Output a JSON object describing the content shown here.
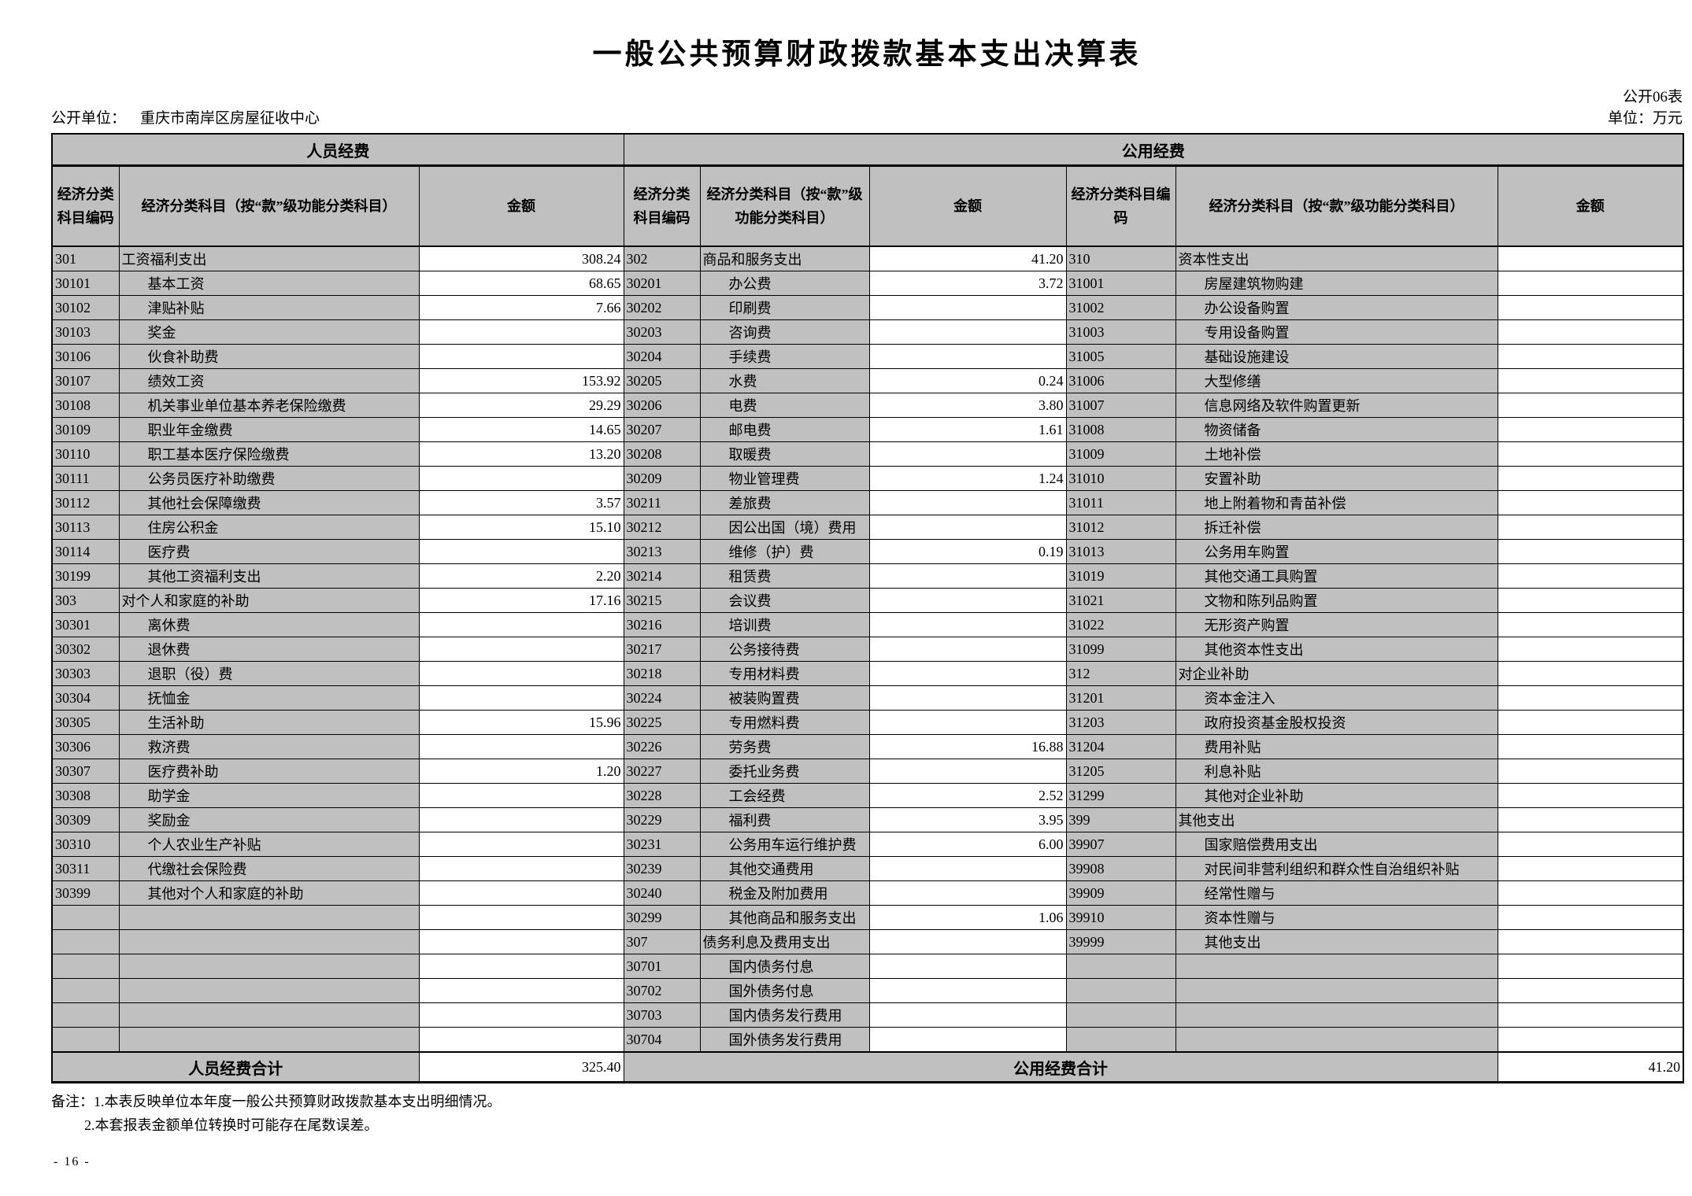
{
  "title": "一般公共预算财政拨款基本支出决算表",
  "meta": {
    "table_code": "公开06表",
    "unit_label": "公开单位：",
    "unit_name": "重庆市南岸区房屋征收中心",
    "unit_of_measure": "单位：万元"
  },
  "table": {
    "group_headers": [
      "人员经费",
      "公用经费"
    ],
    "column_headers": [
      "经济分类科目编码",
      "经济分类科目（按“款”级功能分类科目）",
      "金额",
      "经济分类科目编码",
      "经济分类科目（按“款”级功能分类科目）",
      "金额",
      "经济分类科目编码",
      "经济分类科目（按“款”级功能分类科目）",
      "金额"
    ],
    "sections": {
      "personnel": [
        {
          "code": "301",
          "name": "工资福利支出",
          "level": 0,
          "amount": "308.24"
        },
        {
          "code": "30101",
          "name": "基本工资",
          "level": 1,
          "amount": "68.65"
        },
        {
          "code": "30102",
          "name": "津贴补贴",
          "level": 1,
          "amount": "7.66"
        },
        {
          "code": "30103",
          "name": "奖金",
          "level": 1,
          "amount": ""
        },
        {
          "code": "30106",
          "name": "伙食补助费",
          "level": 1,
          "amount": ""
        },
        {
          "code": "30107",
          "name": "绩效工资",
          "level": 1,
          "amount": "153.92"
        },
        {
          "code": "30108",
          "name": "机关事业单位基本养老保险缴费",
          "level": 1,
          "amount": "29.29"
        },
        {
          "code": "30109",
          "name": "职业年金缴费",
          "level": 1,
          "amount": "14.65"
        },
        {
          "code": "30110",
          "name": "职工基本医疗保险缴费",
          "level": 1,
          "amount": "13.20"
        },
        {
          "code": "30111",
          "name": "公务员医疗补助缴费",
          "level": 1,
          "amount": ""
        },
        {
          "code": "30112",
          "name": "其他社会保障缴费",
          "level": 1,
          "amount": "3.57"
        },
        {
          "code": "30113",
          "name": "住房公积金",
          "level": 1,
          "amount": "15.10"
        },
        {
          "code": "30114",
          "name": "医疗费",
          "level": 1,
          "amount": ""
        },
        {
          "code": "30199",
          "name": "其他工资福利支出",
          "level": 1,
          "amount": "2.20"
        },
        {
          "code": "303",
          "name": "对个人和家庭的补助",
          "level": 0,
          "amount": "17.16"
        },
        {
          "code": "30301",
          "name": "离休费",
          "level": 1,
          "amount": ""
        },
        {
          "code": "30302",
          "name": "退休费",
          "level": 1,
          "amount": ""
        },
        {
          "code": "30303",
          "name": "退职（役）费",
          "level": 1,
          "amount": ""
        },
        {
          "code": "30304",
          "name": "抚恤金",
          "level": 1,
          "amount": ""
        },
        {
          "code": "30305",
          "name": "生活补助",
          "level": 1,
          "amount": "15.96"
        },
        {
          "code": "30306",
          "name": "救济费",
          "level": 1,
          "amount": ""
        },
        {
          "code": "30307",
          "name": "医疗费补助",
          "level": 1,
          "amount": "1.20"
        },
        {
          "code": "30308",
          "name": "助学金",
          "level": 1,
          "amount": ""
        },
        {
          "code": "30309",
          "name": "奖励金",
          "level": 1,
          "amount": ""
        },
        {
          "code": "30310",
          "name": "个人农业生产补贴",
          "level": 1,
          "amount": ""
        },
        {
          "code": "30311",
          "name": "代缴社会保险费",
          "level": 1,
          "amount": ""
        },
        {
          "code": "30399",
          "name": "其他对个人和家庭的补助",
          "level": 1,
          "amount": ""
        },
        {
          "code": "",
          "name": "",
          "level": 1,
          "amount": ""
        },
        {
          "code": "",
          "name": "",
          "level": 1,
          "amount": ""
        },
        {
          "code": "",
          "name": "",
          "level": 1,
          "amount": ""
        },
        {
          "code": "",
          "name": "",
          "level": 1,
          "amount": ""
        },
        {
          "code": "",
          "name": "",
          "level": 1,
          "amount": ""
        },
        {
          "code": "",
          "name": "",
          "level": 1,
          "amount": ""
        }
      ],
      "public_a": [
        {
          "code": "302",
          "name": "商品和服务支出",
          "level": 0,
          "amount": "41.20"
        },
        {
          "code": "30201",
          "name": "办公费",
          "level": 1,
          "amount": "3.72"
        },
        {
          "code": "30202",
          "name": "印刷费",
          "level": 1,
          "amount": ""
        },
        {
          "code": "30203",
          "name": "咨询费",
          "level": 1,
          "amount": ""
        },
        {
          "code": "30204",
          "name": "手续费",
          "level": 1,
          "amount": ""
        },
        {
          "code": "30205",
          "name": "水费",
          "level": 1,
          "amount": "0.24"
        },
        {
          "code": "30206",
          "name": "电费",
          "level": 1,
          "amount": "3.80"
        },
        {
          "code": "30207",
          "name": "邮电费",
          "level": 1,
          "amount": "1.61"
        },
        {
          "code": "30208",
          "name": "取暖费",
          "level": 1,
          "amount": ""
        },
        {
          "code": "30209",
          "name": "物业管理费",
          "level": 1,
          "amount": "1.24"
        },
        {
          "code": "30211",
          "name": "差旅费",
          "level": 1,
          "amount": ""
        },
        {
          "code": "30212",
          "name": "因公出国（境）费用",
          "level": 1,
          "amount": ""
        },
        {
          "code": "30213",
          "name": "维修（护）费",
          "level": 1,
          "amount": "0.19"
        },
        {
          "code": "30214",
          "name": "租赁费",
          "level": 1,
          "amount": ""
        },
        {
          "code": "30215",
          "name": "会议费",
          "level": 1,
          "amount": ""
        },
        {
          "code": "30216",
          "name": "培训费",
          "level": 1,
          "amount": ""
        },
        {
          "code": "30217",
          "name": "公务接待费",
          "level": 1,
          "amount": ""
        },
        {
          "code": "30218",
          "name": "专用材料费",
          "level": 1,
          "amount": ""
        },
        {
          "code": "30224",
          "name": "被装购置费",
          "level": 1,
          "amount": ""
        },
        {
          "code": "30225",
          "name": "专用燃料费",
          "level": 1,
          "amount": ""
        },
        {
          "code": "30226",
          "name": "劳务费",
          "level": 1,
          "amount": "16.88"
        },
        {
          "code": "30227",
          "name": "委托业务费",
          "level": 1,
          "amount": ""
        },
        {
          "code": "30228",
          "name": "工会经费",
          "level": 1,
          "amount": "2.52"
        },
        {
          "code": "30229",
          "name": "福利费",
          "level": 1,
          "amount": "3.95"
        },
        {
          "code": "30231",
          "name": "公务用车运行维护费",
          "level": 1,
          "amount": "6.00"
        },
        {
          "code": "30239",
          "name": "其他交通费用",
          "level": 1,
          "amount": ""
        },
        {
          "code": "30240",
          "name": "税金及附加费用",
          "level": 1,
          "amount": ""
        },
        {
          "code": "30299",
          "name": "其他商品和服务支出",
          "level": 1,
          "amount": "1.06"
        },
        {
          "code": "307",
          "name": "债务利息及费用支出",
          "level": 0,
          "amount": ""
        },
        {
          "code": "30701",
          "name": "国内债务付息",
          "level": 1,
          "amount": ""
        },
        {
          "code": "30702",
          "name": "国外债务付息",
          "level": 1,
          "amount": ""
        },
        {
          "code": "30703",
          "name": "国内债务发行费用",
          "level": 1,
          "amount": ""
        },
        {
          "code": "30704",
          "name": "国外债务发行费用",
          "level": 1,
          "amount": ""
        }
      ],
      "public_b": [
        {
          "code": "310",
          "name": "资本性支出",
          "level": 0,
          "amount": ""
        },
        {
          "code": "31001",
          "name": "房屋建筑物购建",
          "level": 1,
          "amount": ""
        },
        {
          "code": "31002",
          "name": "办公设备购置",
          "level": 1,
          "amount": ""
        },
        {
          "code": "31003",
          "name": "专用设备购置",
          "level": 1,
          "amount": ""
        },
        {
          "code": "31005",
          "name": "基础设施建设",
          "level": 1,
          "amount": ""
        },
        {
          "code": "31006",
          "name": "大型修缮",
          "level": 1,
          "amount": ""
        },
        {
          "code": "31007",
          "name": "信息网络及软件购置更新",
          "level": 1,
          "amount": ""
        },
        {
          "code": "31008",
          "name": "物资储备",
          "level": 1,
          "amount": ""
        },
        {
          "code": "31009",
          "name": "土地补偿",
          "level": 1,
          "amount": ""
        },
        {
          "code": "31010",
          "name": "安置补助",
          "level": 1,
          "amount": ""
        },
        {
          "code": "31011",
          "name": "地上附着物和青苗补偿",
          "level": 1,
          "amount": ""
        },
        {
          "code": "31012",
          "name": "拆迁补偿",
          "level": 1,
          "amount": ""
        },
        {
          "code": "31013",
          "name": "公务用车购置",
          "level": 1,
          "amount": ""
        },
        {
          "code": "31019",
          "name": "其他交通工具购置",
          "level": 1,
          "amount": ""
        },
        {
          "code": "31021",
          "name": "文物和陈列品购置",
          "level": 1,
          "amount": ""
        },
        {
          "code": "31022",
          "name": "无形资产购置",
          "level": 1,
          "amount": ""
        },
        {
          "code": "31099",
          "name": "其他资本性支出",
          "level": 1,
          "amount": ""
        },
        {
          "code": "312",
          "name": "对企业补助",
          "level": 0,
          "amount": ""
        },
        {
          "code": "31201",
          "name": "资本金注入",
          "level": 1,
          "amount": ""
        },
        {
          "code": "31203",
          "name": "政府投资基金股权投资",
          "level": 1,
          "amount": ""
        },
        {
          "code": "31204",
          "name": "费用补贴",
          "level": 1,
          "amount": ""
        },
        {
          "code": "31205",
          "name": "利息补贴",
          "level": 1,
          "amount": ""
        },
        {
          "code": "31299",
          "name": "其他对企业补助",
          "level": 1,
          "amount": ""
        },
        {
          "code": "399",
          "name": "其他支出",
          "level": 0,
          "amount": ""
        },
        {
          "code": "39907",
          "name": "国家赔偿费用支出",
          "level": 1,
          "amount": ""
        },
        {
          "code": "39908",
          "name": "对民间非营利组织和群众性自治组织补贴",
          "level": 1,
          "amount": ""
        },
        {
          "code": "39909",
          "name": "经常性赠与",
          "level": 1,
          "amount": ""
        },
        {
          "code": "39910",
          "name": "资本性赠与",
          "level": 1,
          "amount": ""
        },
        {
          "code": "39999",
          "name": "其他支出",
          "level": 1,
          "amount": ""
        },
        {
          "code": "",
          "name": "",
          "level": 1,
          "amount": ""
        },
        {
          "code": "",
          "name": "",
          "level": 1,
          "amount": ""
        },
        {
          "code": "",
          "name": "",
          "level": 1,
          "amount": ""
        },
        {
          "code": "",
          "name": "",
          "level": 1,
          "amount": ""
        }
      ]
    },
    "totals": {
      "personnel_label": "人员经费合计",
      "personnel_amount": "325.40",
      "public_label": "公用经费合计",
      "public_amount": "41.20"
    }
  },
  "notes": {
    "line1": "备注：1.本表反映单位本年度一般公共预算财政拨款基本支出明细情况。",
    "line2": "2.本套报表金额单位转换时可能存在尾数误差。"
  },
  "page_number": "- 16 -"
}
